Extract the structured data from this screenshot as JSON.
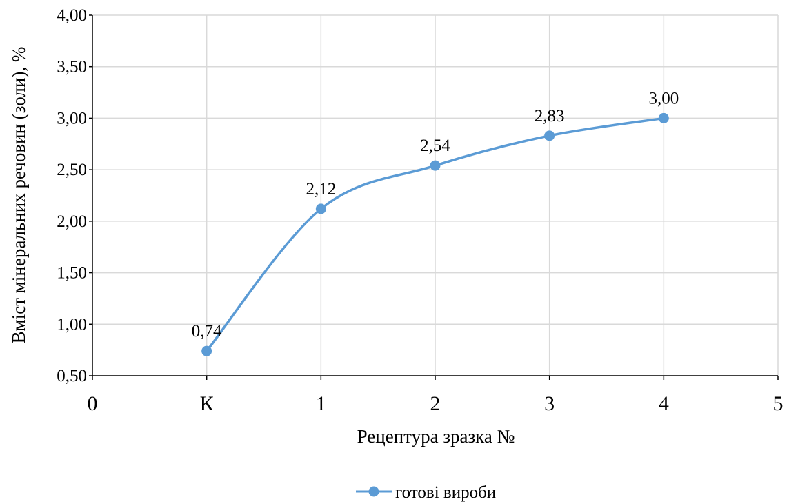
{
  "chart_data": {
    "type": "line",
    "x_ticks": [
      "0",
      "К",
      "1",
      "2",
      "3",
      "4",
      "5"
    ],
    "xlabel": "Рецептура зразка №",
    "ylabel": "Вміст мінеральних речовин (золи), %",
    "ylim": [
      0.5,
      4.0
    ],
    "y_ticks": [
      "0,50",
      "1,00",
      "1,50",
      "2,00",
      "2,50",
      "3,00",
      "3,50",
      "4,00"
    ],
    "grid": true,
    "smooth": true,
    "legend_position": "bottom",
    "series": [
      {
        "name": "готові вироби",
        "color": "#5B9BD5",
        "categories": [
          "К",
          "1",
          "2",
          "3",
          "4"
        ],
        "values": [
          0.74,
          2.12,
          2.54,
          2.83,
          3.0
        ],
        "labels": [
          "0,74",
          "2,12",
          "2,54",
          "2,83",
          "3,00"
        ]
      }
    ]
  }
}
